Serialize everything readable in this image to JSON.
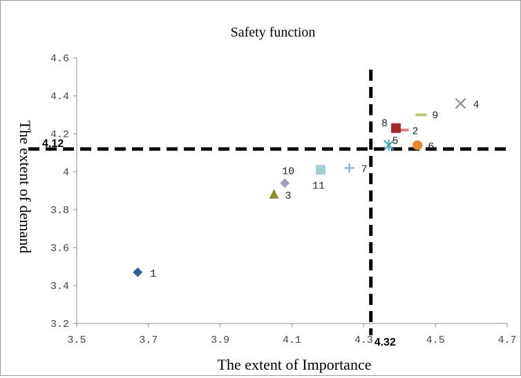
{
  "chart_data": {
    "type": "scatter",
    "title": "Safety function",
    "xlabel": "The extent of Importance",
    "ylabel": "The extent of demand",
    "xlim": [
      3.5,
      4.7
    ],
    "ylim": [
      3.2,
      4.6
    ],
    "x_ticks": [
      "3.5",
      "3.7",
      "3.9",
      "4.1",
      "4.3",
      "4.5",
      "4.7"
    ],
    "y_ticks": [
      "3.2",
      "3.4",
      "3.6",
      "3.8",
      "4",
      "4.2",
      "4.4",
      "4.6"
    ],
    "grid": false,
    "legend": "none",
    "thresholds": {
      "x": 4.32,
      "x_label": "4.32",
      "y": 4.12,
      "y_label": "4.12"
    },
    "points": [
      {
        "label": "1",
        "x": 3.67,
        "y": 3.47,
        "marker": "diamond",
        "color": "#2e5f9a"
      },
      {
        "label": "2",
        "x": 4.41,
        "y": 4.22,
        "marker": "dash",
        "color": "#e07a7a"
      },
      {
        "label": "3",
        "x": 4.05,
        "y": 3.88,
        "marker": "triangle",
        "color": "#8c8f2a"
      },
      {
        "label": "4",
        "x": 4.57,
        "y": 4.36,
        "marker": "x",
        "color": "#8a8a8a"
      },
      {
        "label": "5",
        "x": 4.37,
        "y": 4.14,
        "marker": "asterisk",
        "color": "#3aa6b8"
      },
      {
        "label": "6",
        "x": 4.45,
        "y": 4.14,
        "marker": "circle",
        "color": "#e08a2a"
      },
      {
        "label": "7",
        "x": 4.26,
        "y": 4.02,
        "marker": "plus",
        "color": "#6fa8d6"
      },
      {
        "label": "8",
        "x": 4.39,
        "y": 4.23,
        "marker": "square",
        "color": "#a42b2b"
      },
      {
        "label": "9",
        "x": 4.46,
        "y": 4.3,
        "marker": "dash",
        "color": "#b8c77a"
      },
      {
        "label": "10",
        "x": 4.08,
        "y": 3.94,
        "marker": "diamond",
        "color": "#a0a0bc"
      },
      {
        "label": "11",
        "x": 4.18,
        "y": 4.01,
        "marker": "square",
        "color": "#9fd0d4"
      }
    ]
  }
}
